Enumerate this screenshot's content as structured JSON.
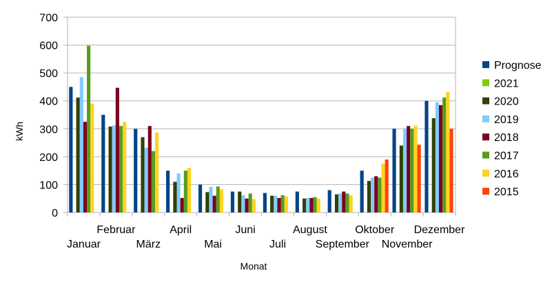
{
  "chart_data": {
    "type": "bar",
    "title": "",
    "xlabel": "Monat",
    "ylabel": "kWh",
    "ylim": [
      0,
      700
    ],
    "yticks": [
      0,
      100,
      200,
      300,
      400,
      500,
      600,
      700
    ],
    "grid": true,
    "legend_position": "right",
    "categories": [
      "Januar",
      "Februar",
      "März",
      "April",
      "Mai",
      "Juni",
      "Juli",
      "August",
      "September",
      "Oktober",
      "November",
      "Dezember"
    ],
    "series": [
      {
        "name": "Prognose",
        "color": "#004586",
        "values": [
          450,
          350,
          300,
          150,
          100,
          75,
          70,
          75,
          80,
          150,
          300,
          400
        ]
      },
      {
        "name": "2021",
        "color": "#83CA0D",
        "values": [
          null,
          null,
          null,
          null,
          null,
          null,
          null,
          null,
          null,
          null,
          null,
          null
        ]
      },
      {
        "name": "2020",
        "color": "#314004",
        "values": [
          412,
          308,
          270,
          110,
          73,
          75,
          60,
          50,
          65,
          113,
          240,
          338
        ]
      },
      {
        "name": "2019",
        "color": "#83CAFF",
        "values": [
          485,
          312,
          232,
          140,
          92,
          62,
          60,
          52,
          68,
          125,
          302,
          395
        ]
      },
      {
        "name": "2018",
        "color": "#7E0021",
        "values": [
          325,
          447,
          310,
          52,
          60,
          50,
          52,
          52,
          75,
          130,
          310,
          385
        ]
      },
      {
        "name": "2017",
        "color": "#579D1C",
        "values": [
          598,
          310,
          220,
          150,
          93,
          68,
          62,
          55,
          68,
          125,
          300,
          412
        ]
      },
      {
        "name": "2016",
        "color": "#FFD320",
        "values": [
          390,
          325,
          287,
          160,
          83,
          48,
          58,
          50,
          62,
          175,
          312,
          432
        ]
      },
      {
        "name": "2015",
        "color": "#FF420E",
        "values": [
          null,
          null,
          null,
          null,
          null,
          null,
          null,
          null,
          null,
          190,
          243,
          300
        ]
      }
    ]
  }
}
